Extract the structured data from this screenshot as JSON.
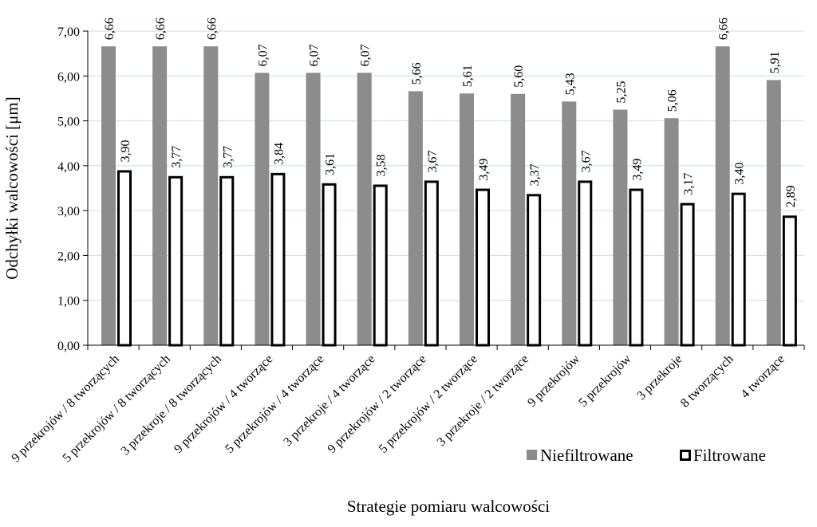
{
  "chart_data": {
    "type": "bar",
    "xlabel": "Strategie pomiaru walcowości",
    "ylabel": "Odchyłki walcowości [μm]",
    "ylim": [
      0,
      7
    ],
    "yticks": [
      "0,00",
      "1,00",
      "2,00",
      "3,00",
      "4,00",
      "5,00",
      "6,00",
      "7,00"
    ],
    "grid": true,
    "legend_position": "bottom-right",
    "categories": [
      "9 przekrojów / 8 tworzących",
      "5 przekrojów / 8 tworzących",
      "3 przekroje / 8 tworzących",
      "9 przekrojów / 4 tworzące",
      "5 przekrojów / 4 tworzące",
      "3 przekroje / 4 tworzące",
      "9 przekrojów / 2 tworzące",
      "5 przekrojów / 2 tworzące",
      "3 przekroje / 2 tworzące",
      "9 przekrojów",
      "5 przekrojów",
      "3 przekroje",
      "8 tworzących",
      "4 tworzące"
    ],
    "series": [
      {
        "name": "Niefiltrowane",
        "color": "#8c8c8c",
        "values": [
          6.66,
          6.66,
          6.66,
          6.07,
          6.07,
          6.07,
          5.66,
          5.61,
          5.6,
          5.43,
          5.25,
          5.06,
          6.66,
          5.91
        ],
        "labels": [
          "6,66",
          "6,66",
          "6,66",
          "6,07",
          "6,07",
          "6,07",
          "5,66",
          "5,61",
          "5,60",
          "5,43",
          "5,25",
          "5,06",
          "6,66",
          "5,91"
        ]
      },
      {
        "name": "Filtrowane",
        "color": "#ffffff",
        "values": [
          3.9,
          3.77,
          3.77,
          3.84,
          3.61,
          3.58,
          3.67,
          3.49,
          3.37,
          3.67,
          3.49,
          3.17,
          3.4,
          2.89
        ],
        "labels": [
          "3,90",
          "3,77",
          "3,77",
          "3,84",
          "3,61",
          "3,58",
          "3,67",
          "3,49",
          "3,37",
          "3,67",
          "3,49",
          "3,17",
          "3,40",
          "2,89"
        ]
      }
    ]
  }
}
